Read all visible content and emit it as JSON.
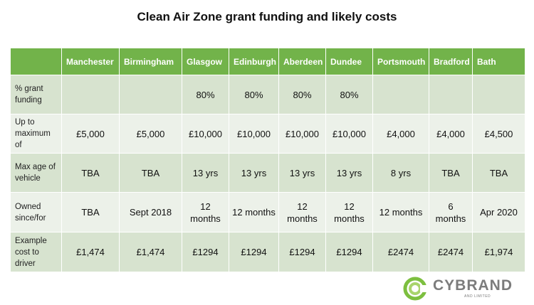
{
  "title": "Clean Air Zone grant funding and likely costs",
  "colors": {
    "header_bg": "#72b34a",
    "row_dark": "#d7e3cf",
    "row_light": "#ecf1e9",
    "logo_green": "#7dbf3f",
    "logo_grey": "#7c7c7c"
  },
  "table": {
    "headers": [
      "",
      "Manchester",
      "Birmingham",
      "Glasgow",
      "Edinburgh",
      "Aberdeen",
      "Dundee",
      "Portsmouth",
      "Bradford",
      "Bath"
    ],
    "rows": [
      {
        "label": "% grant funding",
        "values": [
          "",
          "",
          "80%",
          "80%",
          "80%",
          "80%",
          "",
          "",
          ""
        ]
      },
      {
        "label": "Up to maximum of",
        "values": [
          "£5,000",
          "£5,000",
          "£10,000",
          "£10,000",
          "£10,000",
          "£10,000",
          "£4,000",
          "£4,000",
          "£4,500"
        ]
      },
      {
        "label": "Max age of vehicle",
        "values": [
          "TBA",
          "TBA",
          "13 yrs",
          "13 yrs",
          "13 yrs",
          "13 yrs",
          "8 yrs",
          "TBA",
          "TBA"
        ]
      },
      {
        "label": "Owned since/for",
        "values": [
          "TBA",
          "Sept 2018",
          "12 months",
          "12 months",
          "12 months",
          "12 months",
          "12 months",
          "6 months",
          "Apr 2020"
        ]
      },
      {
        "label": "Example cost to driver",
        "values": [
          "£1,474",
          "£1,474",
          "£1294",
          "£1294",
          "£1294",
          "£1294",
          "£2474",
          "£2474",
          "£1,974"
        ]
      }
    ]
  },
  "logo": {
    "name": "CYBRAND",
    "sub": "AND LIMITED",
    "icon": "cybrand-logo-icon"
  }
}
